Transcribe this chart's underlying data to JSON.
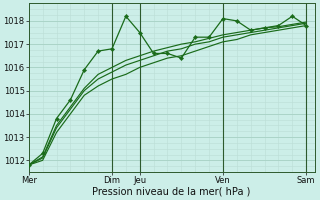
{
  "bg_color": "#cceee8",
  "grid_major_color": "#aad4c8",
  "grid_minor_color": "#bbddd6",
  "line_color": "#1a6b1a",
  "xlabel": "Pression niveau de la mer( hPa )",
  "ylim": [
    1011.5,
    1018.7
  ],
  "yticks": [
    1012,
    1013,
    1014,
    1015,
    1016,
    1017,
    1018
  ],
  "xtick_pos": [
    0,
    3.0,
    4.0,
    7.0,
    10.0
  ],
  "xtick_lab": [
    "Mer",
    "Dim",
    "Jeu",
    "Ven",
    "Sam"
  ],
  "vlines": [
    3.0,
    4.0,
    7.0,
    10.0
  ],
  "xlim": [
    0,
    10.3
  ],
  "tick_fontsize": 6,
  "xlabel_fontsize": 7,
  "series_x": [
    0,
    0.5,
    1.0,
    1.5,
    2.0,
    2.5,
    3.0,
    3.5,
    4.0,
    4.5,
    5.0,
    5.5,
    6.0,
    6.5,
    7.0,
    7.5,
    8.0,
    8.5,
    9.0,
    9.5,
    10.0
  ],
  "series": [
    [
      1011.8,
      1012.3,
      1013.8,
      1014.6,
      1015.9,
      1016.7,
      1016.8,
      1018.2,
      1017.5,
      1016.6,
      1016.6,
      1016.4,
      1017.3,
      1017.3,
      1018.1,
      1018.0,
      1017.6,
      1017.7,
      1017.8,
      1018.2,
      1017.8
    ],
    [
      1011.8,
      1012.0,
      1013.2,
      1014.0,
      1014.8,
      1015.2,
      1015.5,
      1015.7,
      1016.0,
      1016.2,
      1016.4,
      1016.5,
      1016.7,
      1016.9,
      1017.1,
      1017.2,
      1017.4,
      1017.5,
      1017.6,
      1017.7,
      1017.8
    ],
    [
      1011.8,
      1012.1,
      1013.4,
      1014.2,
      1015.0,
      1015.5,
      1015.8,
      1016.1,
      1016.3,
      1016.5,
      1016.7,
      1016.8,
      1017.0,
      1017.1,
      1017.3,
      1017.4,
      1017.5,
      1017.6,
      1017.7,
      1017.8,
      1017.9
    ],
    [
      1011.8,
      1012.15,
      1013.5,
      1014.3,
      1015.1,
      1015.7,
      1016.0,
      1016.3,
      1016.5,
      1016.7,
      1016.85,
      1017.0,
      1017.1,
      1017.25,
      1017.4,
      1017.5,
      1017.6,
      1017.7,
      1017.75,
      1017.85,
      1017.95
    ]
  ]
}
